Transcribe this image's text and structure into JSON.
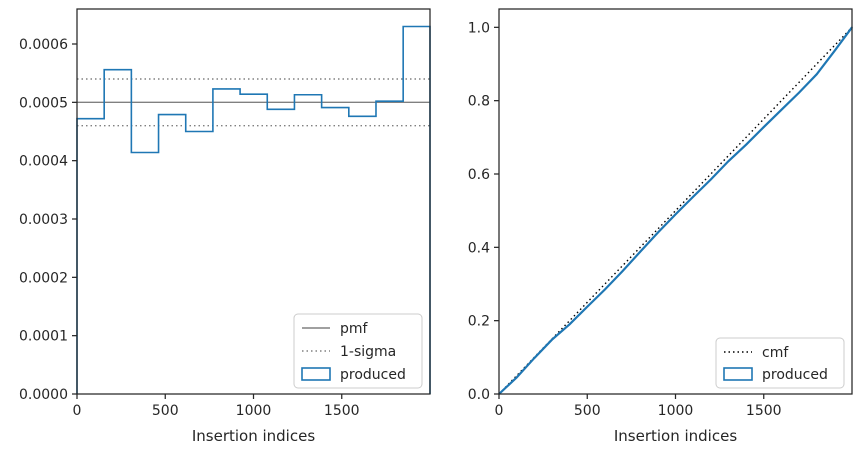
{
  "chart_data": [
    {
      "type": "step",
      "xlabel": "Insertion indices",
      "ylabel": "",
      "xlim": [
        0,
        2000
      ],
      "ylim": [
        0,
        0.00066
      ],
      "xticks": [
        0,
        500,
        1000,
        1500
      ],
      "yticks": [
        0,
        0.0001,
        0.0002,
        0.0003,
        0.0004,
        0.0005,
        0.0006
      ],
      "ytick_labels": [
        "0.0000",
        "0.0001",
        "0.0002",
        "0.0003",
        "0.0004",
        "0.0005",
        "0.0006"
      ],
      "xtick_labels": [
        "0",
        "500",
        "1000",
        "1500"
      ],
      "legend_position": "lower-right",
      "pmf": 0.0005,
      "sigma_band": [
        0.00046,
        0.00054
      ],
      "bin_edges": [
        0,
        154,
        308,
        462,
        616,
        770,
        924,
        1078,
        1232,
        1386,
        1540,
        1694,
        1848,
        2000
      ],
      "produced": [
        0.000472,
        0.000556,
        0.000414,
        0.000479,
        0.00045,
        0.000523,
        0.000514,
        0.000488,
        0.000513,
        0.000491,
        0.000476,
        0.000502,
        0.00063
      ],
      "legend": [
        {
          "label": "pmf",
          "style": "solid"
        },
        {
          "label": "1-sigma",
          "style": "dotted"
        },
        {
          "label": "produced",
          "style": "patch"
        }
      ]
    },
    {
      "type": "line",
      "xlabel": "Insertion indices",
      "ylabel": "",
      "xlim": [
        0,
        2000
      ],
      "ylim": [
        0,
        1.05
      ],
      "xticks": [
        0,
        500,
        1000,
        1500
      ],
      "yticks": [
        0,
        0.2,
        0.4,
        0.6,
        0.8,
        1.0
      ],
      "ytick_labels": [
        "0.0",
        "0.2",
        "0.4",
        "0.6",
        "0.8",
        "1.0"
      ],
      "xtick_labels": [
        "0",
        "500",
        "1000",
        "1500"
      ],
      "legend_position": "lower-right",
      "cmf": {
        "x": [
          0,
          2000
        ],
        "y": [
          0,
          1.0
        ]
      },
      "produced": {
        "x": [
          0,
          100,
          200,
          300,
          400,
          500,
          600,
          700,
          800,
          900,
          1000,
          1100,
          1200,
          1300,
          1400,
          1500,
          1600,
          1700,
          1800,
          1900,
          2000
        ],
        "y": [
          0,
          0.045,
          0.098,
          0.148,
          0.19,
          0.238,
          0.285,
          0.335,
          0.388,
          0.44,
          0.49,
          0.538,
          0.585,
          0.635,
          0.68,
          0.728,
          0.775,
          0.822,
          0.872,
          0.935,
          1.0
        ]
      },
      "legend": [
        {
          "label": "cmf",
          "style": "dotted"
        },
        {
          "label": "produced",
          "style": "patch"
        }
      ]
    }
  ],
  "colors": {
    "produced": "#1f77b4",
    "pmf": "#808080",
    "sigma": "#808080",
    "cmf": "#000000",
    "axes": "#262626"
  }
}
